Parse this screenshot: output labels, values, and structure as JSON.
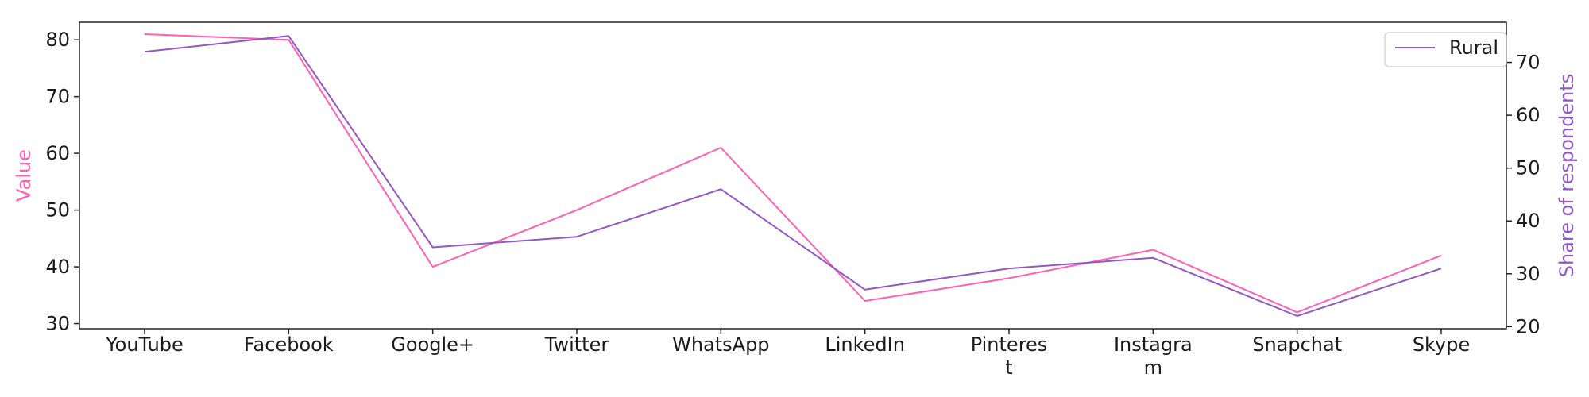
{
  "chart_data": {
    "type": "line",
    "categories": [
      "YouTube",
      "Facebook",
      "Google+",
      "Twitter",
      "WhatsApp",
      "LinkedIn",
      "Pinterest",
      "Instagram",
      "Snapchat",
      "Skype"
    ],
    "category_display": [
      [
        "YouTube"
      ],
      [
        "Facebook"
      ],
      [
        "Google+"
      ],
      [
        "Twitter"
      ],
      [
        "WhatsApp"
      ],
      [
        "LinkedIn"
      ],
      [
        "Pinteres",
        "t"
      ],
      [
        "Instagra",
        "m"
      ],
      [
        "Snapchat"
      ],
      [
        "Skype"
      ]
    ],
    "series": [
      {
        "name": "",
        "axis": "left",
        "color": "#ff5fb4",
        "values": [
          81,
          80,
          40,
          50,
          61,
          34,
          38,
          43,
          32,
          42
        ]
      },
      {
        "name": "Rural",
        "axis": "right",
        "color": "#9257c4",
        "values": [
          72,
          75,
          35,
          37,
          46,
          27,
          31,
          33,
          22,
          31
        ]
      }
    ],
    "ylabel_left": "Value",
    "ylabel_right": "Share of respondents",
    "ylim_left": [
      29.1,
      83.1
    ],
    "ylim_right": [
      19.6,
      77.6
    ],
    "yticks_left": [
      30,
      40,
      50,
      60,
      70,
      80
    ],
    "yticks_right": [
      20,
      30,
      40,
      50,
      60,
      70
    ],
    "grid": false,
    "legend_position": "top-right"
  }
}
